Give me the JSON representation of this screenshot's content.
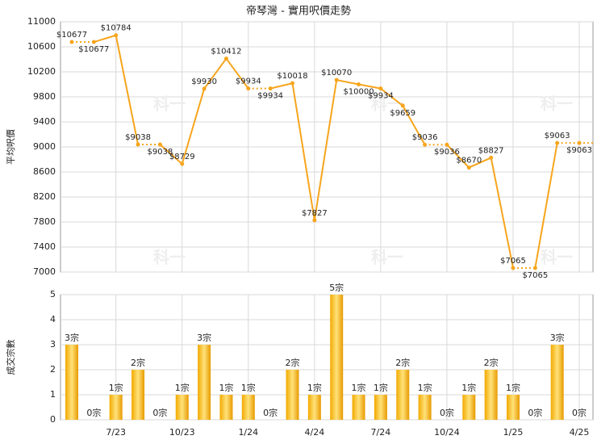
{
  "chart_data": [
    {
      "type": "line",
      "title": "帝琴灣 - 實用呎價走勢",
      "ylabel": "平均呎價",
      "watermark": "科一",
      "color": "#f7a51c",
      "categories": [
        null,
        null,
        "7/23",
        null,
        null,
        "10/23",
        null,
        null,
        "1/24",
        null,
        null,
        "4/24",
        null,
        null,
        "7/24",
        null,
        null,
        "10/24",
        null,
        null,
        "1/25",
        null,
        null,
        "4/25"
      ],
      "values": [
        10677,
        10677,
        10784,
        9038,
        9038,
        8729,
        9930,
        10412,
        9934,
        9934,
        10018,
        7827,
        10070,
        10000,
        9934,
        9659,
        9036,
        9036,
        8670,
        8827,
        7065,
        7065,
        9063,
        9063
      ],
      "value_labels": [
        "$10677",
        "$10677",
        "$10784",
        "$9038",
        "$9038",
        "$8729",
        "$9930",
        "$10412",
        "$9934",
        "$9934",
        "$10018",
        "$7827",
        "$10070",
        "$10000",
        "$9934",
        "$9659",
        "$9036",
        "$9036",
        "$8670",
        "$8827",
        "$7065",
        "$7065",
        "$9063",
        "$9063"
      ],
      "ylim": [
        7000,
        11000
      ],
      "yticks": [
        7000,
        7400,
        7800,
        8200,
        8600,
        9000,
        9400,
        9800,
        10200,
        10600,
        11000
      ],
      "grid": true
    },
    {
      "type": "bar",
      "ylabel": "成交宗數",
      "color": "#f5b014",
      "categories": [
        null,
        null,
        "7/23",
        null,
        null,
        "10/23",
        null,
        null,
        "1/24",
        null,
        null,
        "4/24",
        null,
        null,
        "7/24",
        null,
        null,
        "10/24",
        null,
        null,
        "1/25",
        null,
        null,
        "4/25"
      ],
      "values": [
        3,
        0,
        1,
        2,
        0,
        1,
        3,
        1,
        1,
        0,
        2,
        1,
        5,
        1,
        1,
        2,
        1,
        0,
        1,
        2,
        1,
        0,
        3,
        0
      ],
      "value_labels": [
        "3宗",
        "0宗",
        "1宗",
        "2宗",
        "0宗",
        "1宗",
        "3宗",
        "1宗",
        "1宗",
        "0宗",
        "2宗",
        "1宗",
        "5宗",
        "1宗",
        "1宗",
        "2宗",
        "1宗",
        "0宗",
        "1宗",
        "2宗",
        "1宗",
        "0宗",
        "3宗",
        "0宗"
      ],
      "ylim": [
        0,
        5
      ],
      "yticks": [
        0,
        1,
        2,
        3,
        4,
        5
      ],
      "grid": true
    }
  ]
}
